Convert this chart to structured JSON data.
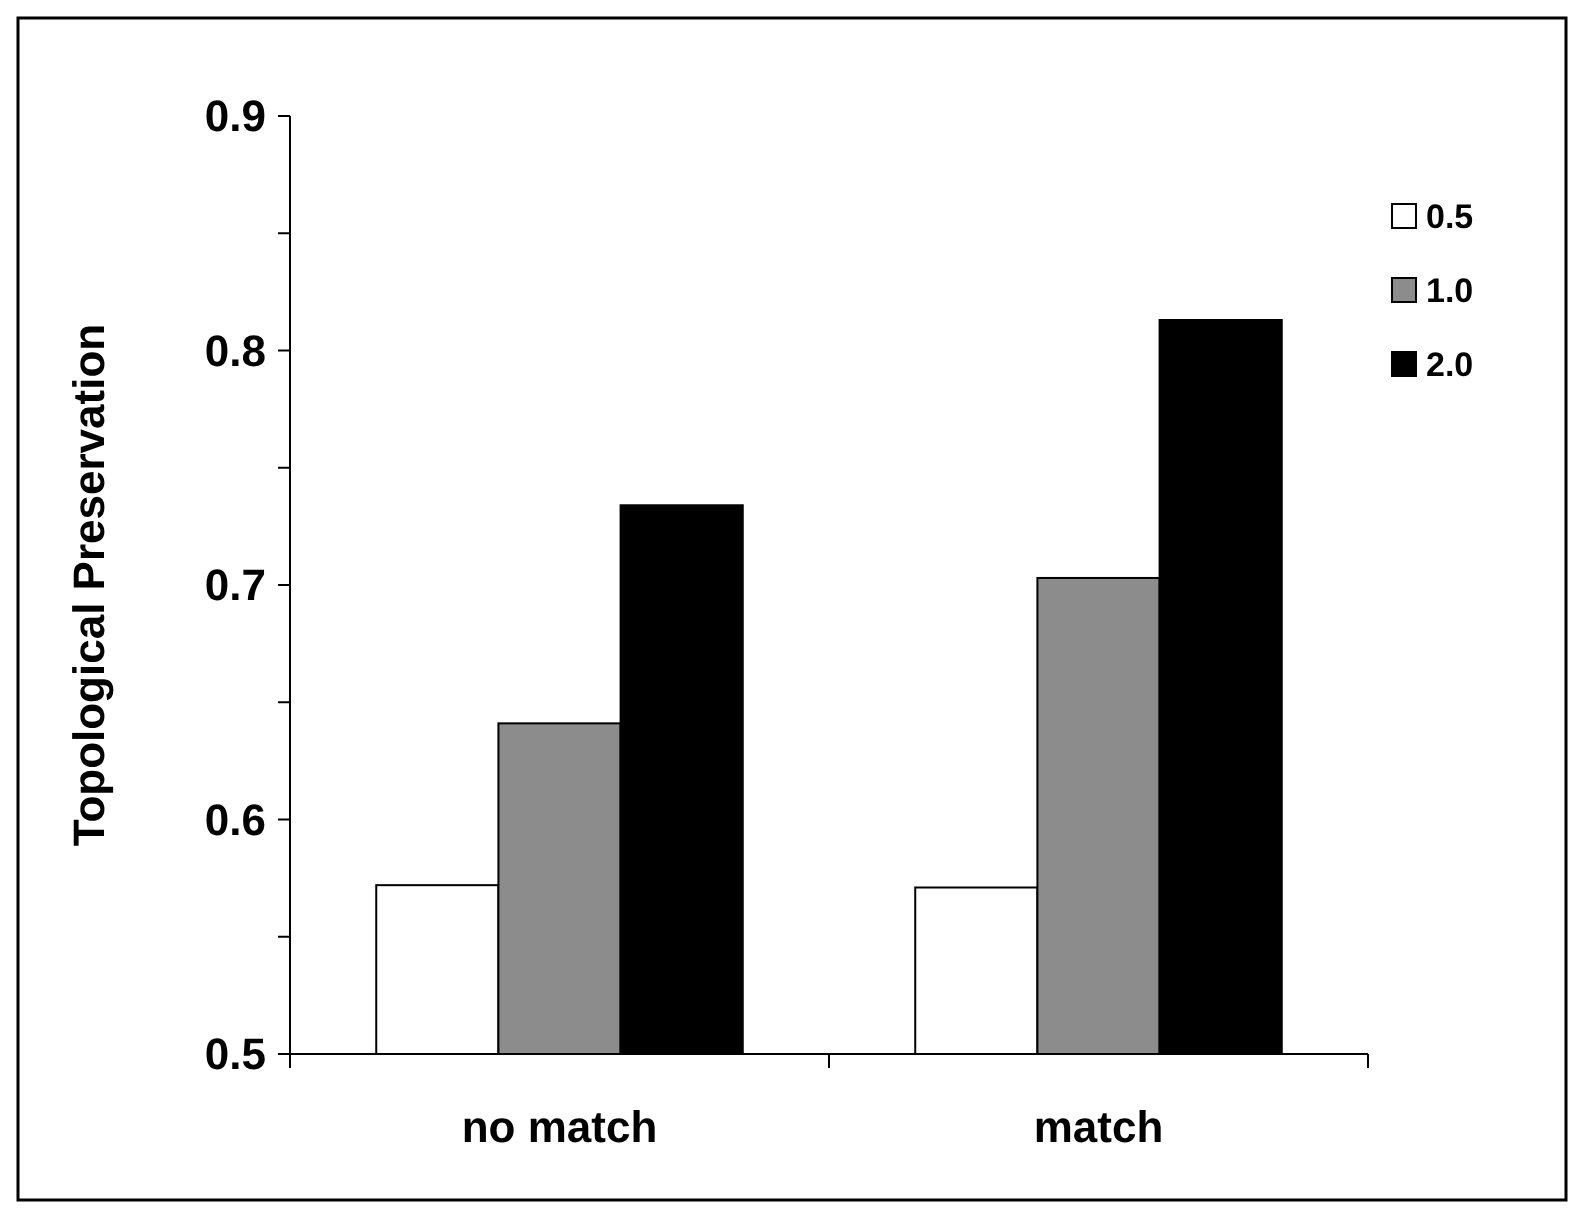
{
  "chart_data": {
    "type": "bar",
    "ylabel": "Topological Preservation",
    "categories": [
      "no match",
      "match"
    ],
    "series": [
      {
        "name": "0.5",
        "color": "#ffffff",
        "values": [
          0.572,
          0.571
        ]
      },
      {
        "name": "1.0",
        "color": "#8c8c8c",
        "values": [
          0.641,
          0.703
        ]
      },
      {
        "name": "2.0",
        "color": "#000000",
        "values": [
          0.734,
          0.813
        ]
      }
    ],
    "ylim": [
      0.5,
      0.9
    ],
    "yticks": [
      0.5,
      {
        "value": 0.55,
        "label": null
      },
      0.6,
      {
        "value": 0.65,
        "label": null
      },
      0.7,
      {
        "value": 0.75,
        "label": null
      },
      0.8,
      {
        "value": 0.85,
        "label": null
      },
      0.9
    ],
    "grid": false,
    "legend": "top right"
  }
}
